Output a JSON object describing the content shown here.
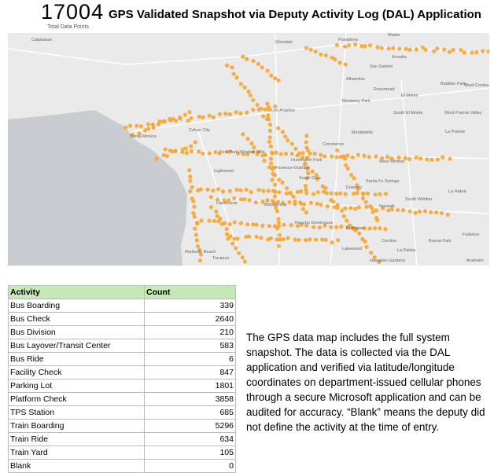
{
  "header": {
    "total": "17004",
    "total_label": "Total Data Points",
    "title": "GPS Validated Snapshot via Deputy Activity Log (DAL) Application"
  },
  "map": {
    "labels": [
      "Calabasas",
      "Glendale",
      "Pasadena",
      "Madre",
      "Arcadia",
      "San Gabriel",
      "Alhambra",
      "Rosemead",
      "El Monte",
      "Baldwin Park",
      "West Covina",
      "Los Angeles",
      "Monterey Park",
      "South El Monte",
      "West Puente Valley",
      "Culver City",
      "Santa Monica",
      "Montebello",
      "La Puente",
      "Commerce",
      "View Park-Windsor Hills",
      "Huntington Park",
      "West Whittier",
      "Inglewood",
      "Florence-Graham",
      "South Gate",
      "Santa Fe Springs",
      "Downey",
      "South Whittier",
      "La Habra",
      "Hawthorne",
      "Willowbrook",
      "Norwalk",
      "Rancho Dominguez",
      "Bellflower",
      "Fullerton",
      "Redondo Beach",
      "Torrance",
      "Cerritos",
      "Buena Park",
      "Lakewood",
      "La Palma",
      "Anaheim",
      "Hawaiian Gardens"
    ]
  },
  "table": {
    "header": [
      "Activity",
      "Count"
    ],
    "rows": [
      [
        "Bus Boarding",
        "339"
      ],
      [
        "Bus Check",
        "2640"
      ],
      [
        "Bus Division",
        "210"
      ],
      [
        "Bus Layover/Transit Center",
        "583"
      ],
      [
        "Bus Ride",
        "6"
      ],
      [
        "Facility Check",
        "847"
      ],
      [
        "Parking Lot",
        "1801"
      ],
      [
        "Platform Check",
        "3858"
      ],
      [
        "TPS Station",
        "685"
      ],
      [
        "Train Boarding",
        "5296"
      ],
      [
        "Train Ride",
        "634"
      ],
      [
        "Train Yard",
        "105"
      ],
      [
        "Blank",
        "0"
      ]
    ]
  },
  "description": "The GPS data map includes the full system snapshot. The data is collected via the DAL application and verified via latitude/longitude coordinates on department-issued cellular phones through a secure Microsoft application and can be audited for accuracy. “Blank” means the deputy did not define the activity at the time of entry."
}
